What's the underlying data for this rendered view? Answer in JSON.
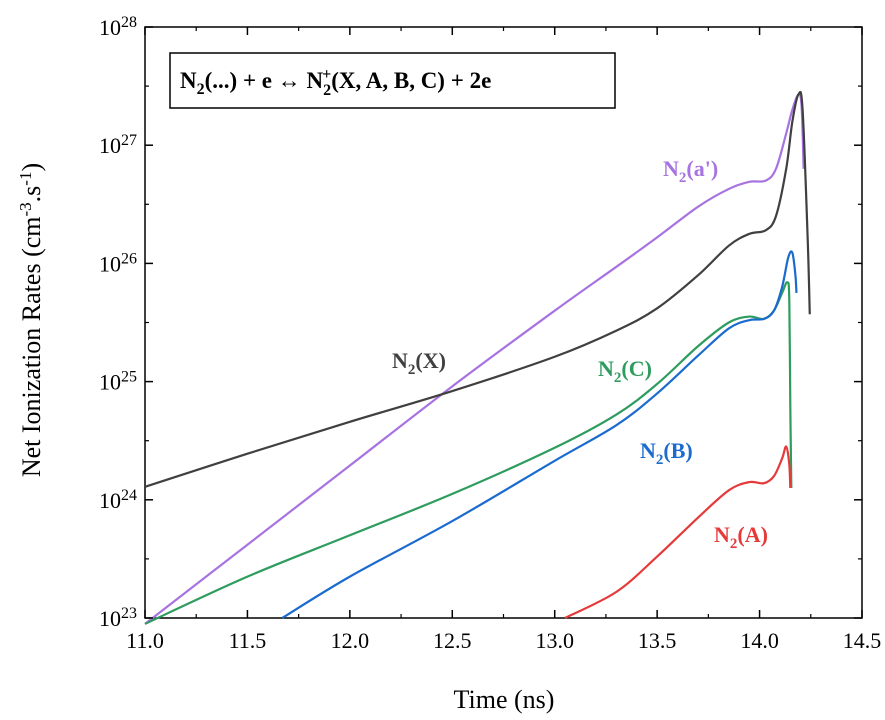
{
  "chart_data": {
    "type": "line",
    "title": "",
    "xlabel": "Time (ns)",
    "ylabel": "Net Ionization Rates (cm",
    "ylabel_exp1": "-3",
    "ylabel_mid": ".s",
    "ylabel_exp2": "-1",
    "ylabel_end": ")",
    "xlim": [
      11.0,
      14.5
    ],
    "ylim": [
      1e+23,
      1e+28
    ],
    "yscale": "log",
    "grid": false,
    "x_ticks": [
      "11.0",
      "11.5",
      "12.0",
      "12.5",
      "13.0",
      "13.5",
      "14.0",
      "14.5"
    ],
    "y_ticks": [
      {
        "base": "10",
        "exp": "23"
      },
      {
        "base": "10",
        "exp": "24"
      },
      {
        "base": "10",
        "exp": "25"
      },
      {
        "base": "10",
        "exp": "26"
      },
      {
        "base": "10",
        "exp": "27"
      },
      {
        "base": "10",
        "exp": "28"
      }
    ],
    "annotation": {
      "p1": "N",
      "s1": "2",
      "p2": "(...) + e ↔ N",
      "sub2": "2",
      "sup2": "+",
      "p3": "(X, A, B, C) + 2e"
    },
    "series": [
      {
        "name": "N2(X)",
        "label_main": "N",
        "label_sub": "2",
        "label_rest": "(X)",
        "color": "#404040",
        "points": [
          [
            11.0,
            24.11
          ],
          [
            11.5,
            24.39
          ],
          [
            12.0,
            24.66
          ],
          [
            12.5,
            24.92
          ],
          [
            13.0,
            25.21
          ],
          [
            13.3,
            25.43
          ],
          [
            13.5,
            25.62
          ],
          [
            13.7,
            25.9
          ],
          [
            13.85,
            26.15
          ],
          [
            13.95,
            26.25
          ],
          [
            14.03,
            26.28
          ],
          [
            14.08,
            26.4
          ],
          [
            14.13,
            26.8
          ],
          [
            14.16,
            27.2
          ],
          [
            14.19,
            27.43
          ],
          [
            14.21,
            27.3
          ],
          [
            14.235,
            26.2
          ],
          [
            14.245,
            25.57
          ]
        ]
      },
      {
        "name": "N2(a')",
        "label_main": "N",
        "label_sub": "2",
        "label_rest": "(a')",
        "color": "#a773e0",
        "points": [
          [
            11.0,
            22.95
          ],
          [
            11.5,
            23.62
          ],
          [
            12.0,
            24.29
          ],
          [
            12.5,
            24.96
          ],
          [
            13.0,
            25.6
          ],
          [
            13.3,
            25.97
          ],
          [
            13.5,
            26.22
          ],
          [
            13.7,
            26.48
          ],
          [
            13.85,
            26.63
          ],
          [
            13.95,
            26.69
          ],
          [
            14.03,
            26.7
          ],
          [
            14.08,
            26.8
          ],
          [
            14.13,
            27.1
          ],
          [
            14.16,
            27.3
          ],
          [
            14.19,
            27.43
          ],
          [
            14.205,
            27.33
          ],
          [
            14.215,
            26.8
          ]
        ]
      },
      {
        "name": "N2(C)",
        "label_main": "N",
        "label_sub": "2",
        "label_rest": "(C)",
        "color": "#2e9c5e",
        "points": [
          [
            11.0,
            22.95
          ],
          [
            11.5,
            23.35
          ],
          [
            12.0,
            23.7
          ],
          [
            12.5,
            24.05
          ],
          [
            13.0,
            24.44
          ],
          [
            13.3,
            24.72
          ],
          [
            13.5,
            24.98
          ],
          [
            13.7,
            25.3
          ],
          [
            13.85,
            25.5
          ],
          [
            13.95,
            25.55
          ],
          [
            14.02,
            25.53
          ],
          [
            14.07,
            25.6
          ],
          [
            14.11,
            25.75
          ],
          [
            14.135,
            25.84
          ],
          [
            14.145,
            25.7
          ],
          [
            14.15,
            24.8
          ],
          [
            14.155,
            24.1
          ]
        ]
      },
      {
        "name": "N2(B)",
        "label_main": "N",
        "label_sub": "2",
        "label_rest": "(B)",
        "color": "#1b6bcf",
        "points": [
          [
            11.67,
            23.0
          ],
          [
            12.0,
            23.35
          ],
          [
            12.5,
            23.82
          ],
          [
            13.0,
            24.33
          ],
          [
            13.3,
            24.63
          ],
          [
            13.5,
            24.9
          ],
          [
            13.7,
            25.22
          ],
          [
            13.85,
            25.45
          ],
          [
            13.95,
            25.52
          ],
          [
            14.02,
            25.53
          ],
          [
            14.07,
            25.6
          ],
          [
            14.11,
            25.8
          ],
          [
            14.14,
            26.05
          ],
          [
            14.16,
            26.09
          ],
          [
            14.175,
            25.9
          ],
          [
            14.18,
            25.75
          ]
        ]
      },
      {
        "name": "N2(A)",
        "label_main": "N",
        "label_sub": "2",
        "label_rest": "(A)",
        "color": "#e63a3a",
        "points": [
          [
            13.05,
            23.0
          ],
          [
            13.3,
            23.22
          ],
          [
            13.5,
            23.52
          ],
          [
            13.7,
            23.85
          ],
          [
            13.85,
            24.08
          ],
          [
            13.95,
            24.15
          ],
          [
            14.02,
            24.14
          ],
          [
            14.07,
            24.2
          ],
          [
            14.11,
            24.35
          ],
          [
            14.13,
            24.45
          ],
          [
            14.145,
            24.3
          ],
          [
            14.15,
            24.1
          ]
        ]
      }
    ]
  }
}
